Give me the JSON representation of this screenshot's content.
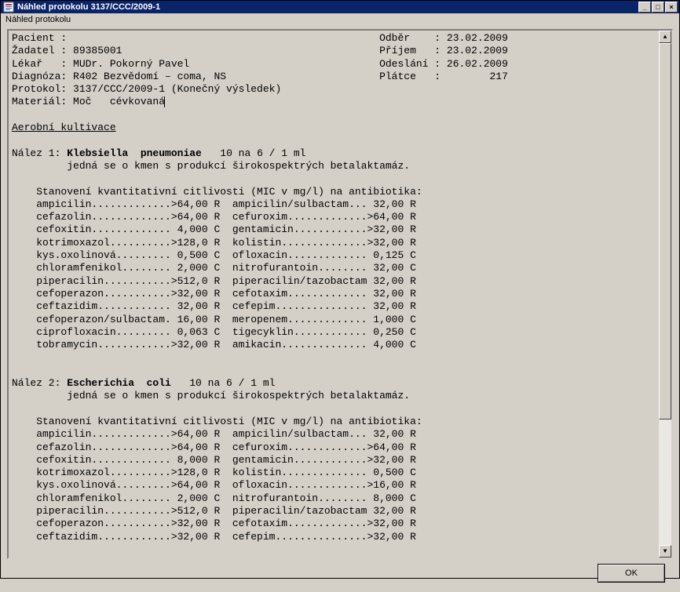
{
  "window": {
    "title": "Náhled protokolu 3137/CCC/2009-1",
    "menu": "Náhled protokolu"
  },
  "buttons": {
    "minimize": "_",
    "maximize": "□",
    "close": "×",
    "ok": "OK",
    "scroll_up": "▲",
    "scroll_down": "▼"
  },
  "header": {
    "left": [
      {
        "label": "Pacient ",
        "value": ""
      },
      {
        "label": "Žadatel ",
        "value": "89385001"
      },
      {
        "label": "Lékař   ",
        "value": "MUDr. Pokorný Pavel"
      },
      {
        "label": "Diagnóza",
        "value": "R402 Bezvědomí – coma, NS"
      },
      {
        "label": "Protokol",
        "value": "3137/CCC/2009-1 (Konečný výsledek)"
      },
      {
        "label": "Materiál",
        "value": "Moč   cévkovaná"
      }
    ],
    "right": [
      {
        "label": "Odběr   ",
        "value": "23.02.2009"
      },
      {
        "label": "Příjem  ",
        "value": "23.02.2009"
      },
      {
        "label": "Odeslání",
        "value": "26.02.2009"
      },
      {
        "label": "Plátce  ",
        "value": "       217"
      }
    ]
  },
  "section_title": "Aerobní kultivace",
  "findings": [
    {
      "num": 1,
      "organism": "Klebsiella  pneumoniae",
      "count": "10 na 6 / 1 ml",
      "note": "jedná se o kmen s produkcí širokospektrých betalaktamáz.",
      "mic_title": "Stanovení kvantitativní citlivosti (MIC v mg/l) na antibiotika:",
      "rows": [
        [
          {
            "n": "ampicilin",
            "v": ">64,00",
            "f": "R"
          },
          {
            "n": "ampicilin/sulbactam",
            "v": "32,00",
            "f": "R"
          }
        ],
        [
          {
            "n": "cefazolin",
            "v": ">64,00",
            "f": "R"
          },
          {
            "n": "cefuroxim",
            "v": ">64,00",
            "f": "R"
          }
        ],
        [
          {
            "n": "cefoxitin",
            "v": "4,000",
            "f": "C"
          },
          {
            "n": "gentamicin",
            "v": ">32,00",
            "f": "R"
          }
        ],
        [
          {
            "n": "kotrimoxazol",
            "v": ">128,0",
            "f": "R"
          },
          {
            "n": "kolistin",
            "v": ">32,00",
            "f": "R"
          }
        ],
        [
          {
            "n": "kys.oxolinová",
            "v": "0,500",
            "f": "C"
          },
          {
            "n": "ofloxacin",
            "v": "0,125",
            "f": "C"
          }
        ],
        [
          {
            "n": "chloramfenikol",
            "v": "2,000",
            "f": "C"
          },
          {
            "n": "nitrofurantoin",
            "v": "32,00",
            "f": "C"
          }
        ],
        [
          {
            "n": "piperacilin",
            "v": ">512,0",
            "f": "R"
          },
          {
            "n": "piperacilin/tazobactam",
            "v": "32,00",
            "f": "R"
          }
        ],
        [
          {
            "n": "cefoperazon",
            "v": ">32,00",
            "f": "R"
          },
          {
            "n": "cefotaxim",
            "v": "32,00",
            "f": "R"
          }
        ],
        [
          {
            "n": "ceftazidim",
            "v": "32,00",
            "f": "R"
          },
          {
            "n": "cefepim",
            "v": "32,00",
            "f": "R"
          }
        ],
        [
          {
            "n": "cefoperazon/sulbactam",
            "v": "16,00",
            "f": "R"
          },
          {
            "n": "meropenem",
            "v": "1,000",
            "f": "C"
          }
        ],
        [
          {
            "n": "ciprofloxacin",
            "v": "0,063",
            "f": "C"
          },
          {
            "n": "tigecyklin",
            "v": "0,250",
            "f": "C"
          }
        ],
        [
          {
            "n": "tobramycin",
            "v": ">32,00",
            "f": "R"
          },
          {
            "n": "amikacin",
            "v": "4,000",
            "f": "C"
          }
        ]
      ]
    },
    {
      "num": 2,
      "organism": "Escherichia  coli",
      "count": "10 na 6 / 1 ml",
      "note": "jedná se o kmen s produkcí širokospektrých betalaktamáz.",
      "mic_title": "Stanovení kvantitativní citlivosti (MIC v mg/l) na antibiotika:",
      "rows": [
        [
          {
            "n": "ampicilin",
            "v": ">64,00",
            "f": "R"
          },
          {
            "n": "ampicilin/sulbactam",
            "v": "32,00",
            "f": "R"
          }
        ],
        [
          {
            "n": "cefazolin",
            "v": ">64,00",
            "f": "R"
          },
          {
            "n": "cefuroxim",
            "v": ">64,00",
            "f": "R"
          }
        ],
        [
          {
            "n": "cefoxitin",
            "v": "8,000",
            "f": "R"
          },
          {
            "n": "gentamicin",
            "v": ">32,00",
            "f": "R"
          }
        ],
        [
          {
            "n": "kotrimoxazol",
            "v": ">128,0",
            "f": "R"
          },
          {
            "n": "kolistin",
            "v": "0,500",
            "f": "C"
          }
        ],
        [
          {
            "n": "kys.oxolinová",
            "v": ">64,00",
            "f": "R"
          },
          {
            "n": "ofloxacin",
            "v": ">16,00",
            "f": "R"
          }
        ],
        [
          {
            "n": "chloramfenikol",
            "v": "2,000",
            "f": "C"
          },
          {
            "n": "nitrofurantoin",
            "v": "8,000",
            "f": "C"
          }
        ],
        [
          {
            "n": "piperacilin",
            "v": ">512,0",
            "f": "R"
          },
          {
            "n": "piperacilin/tazobactam",
            "v": "32,00",
            "f": "R"
          }
        ],
        [
          {
            "n": "cefoperazon",
            "v": ">32,00",
            "f": "R"
          },
          {
            "n": "cefotaxim",
            "v": ">32,00",
            "f": "R"
          }
        ],
        [
          {
            "n": "ceftazidim",
            "v": ">32,00",
            "f": "R"
          },
          {
            "n": "cefepim",
            "v": ">32,00",
            "f": "R"
          }
        ]
      ]
    }
  ],
  "colwidths": {
    "name": 22,
    "val": 6,
    "gap": 3
  }
}
